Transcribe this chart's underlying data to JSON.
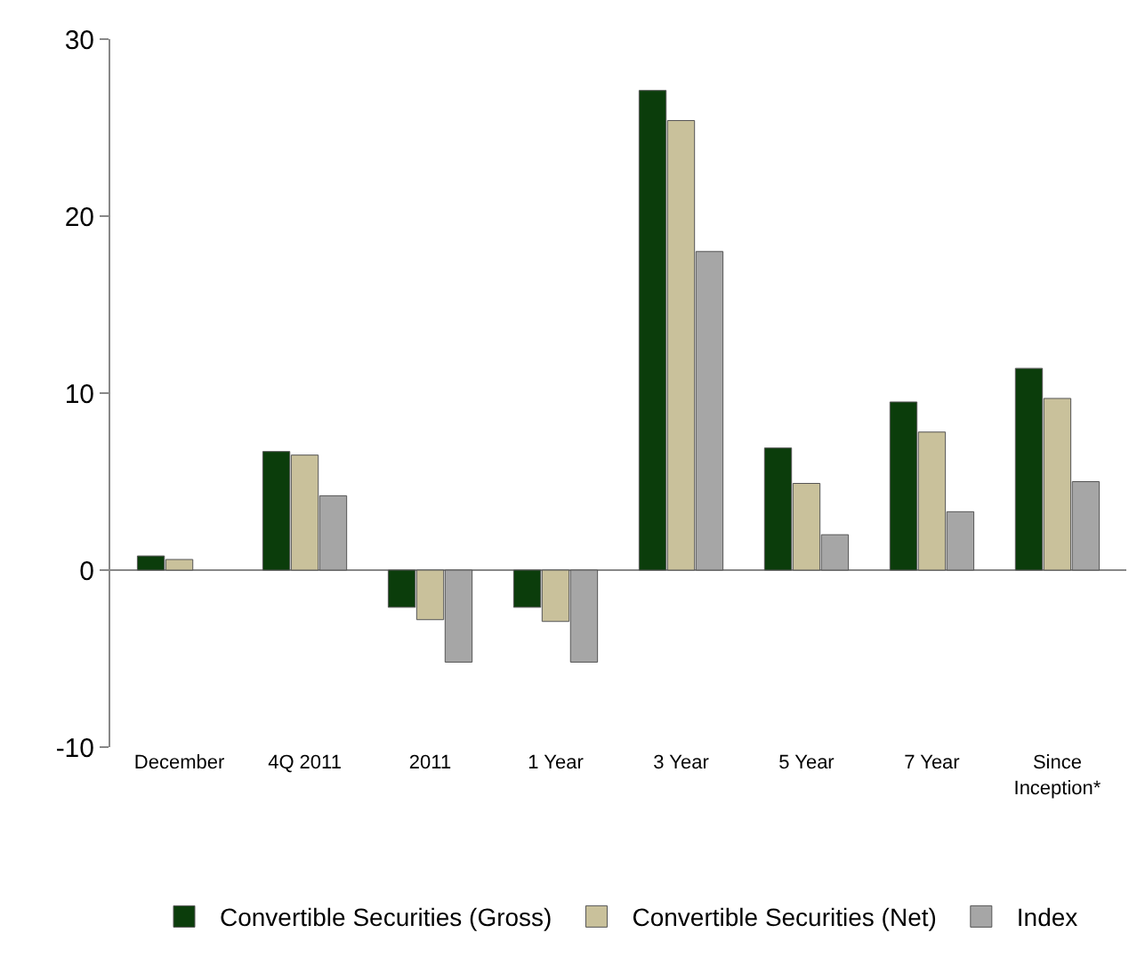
{
  "chart_data": {
    "type": "bar",
    "categories": [
      "December",
      "4Q 2011",
      "2011",
      "1 Year",
      "3 Year",
      "5 Year",
      "7 Year",
      "Since Inception*"
    ],
    "series": [
      {
        "name": "Convertible Securities (Gross)",
        "color": "#0b3d0b",
        "values": [
          0.8,
          6.7,
          -2.1,
          -2.1,
          27.1,
          6.9,
          9.5,
          11.4
        ]
      },
      {
        "name": "Convertible Securities (Net)",
        "color": "#c9c19b",
        "values": [
          0.6,
          6.5,
          -2.8,
          -2.9,
          25.4,
          4.9,
          7.8,
          9.7
        ]
      },
      {
        "name": "Index",
        "color": "#a6a6a6",
        "values": [
          null,
          4.2,
          -5.2,
          -5.2,
          18.0,
          2.0,
          3.3,
          5.0
        ]
      }
    ],
    "ylim": [
      -10,
      30
    ],
    "yticks": [
      -10,
      0,
      10,
      20,
      30
    ],
    "legend": "bottom"
  }
}
